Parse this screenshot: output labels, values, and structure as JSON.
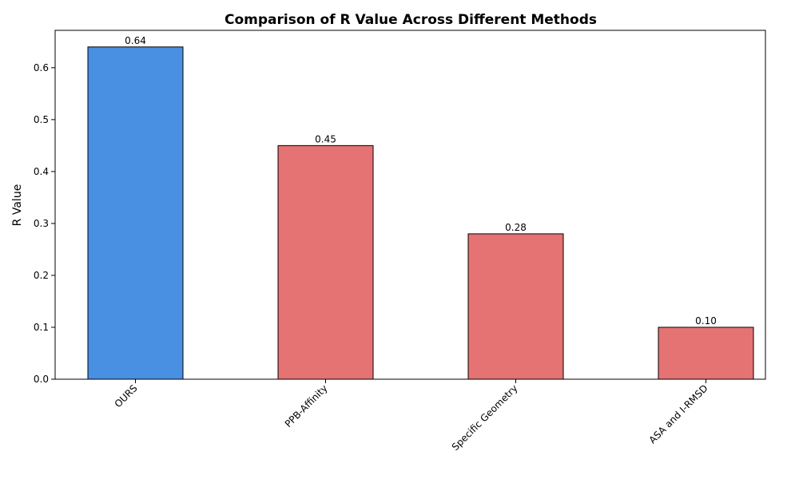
{
  "chart_data": {
    "type": "bar",
    "title": "Comparison of R Value Across Different Methods",
    "xlabel": "",
    "ylabel": "R Value",
    "categories": [
      "OURS",
      "PPB-Affinity",
      "Specific Geometry",
      "ASA and I-RMSD"
    ],
    "values": [
      0.64,
      0.45,
      0.28,
      0.1
    ],
    "value_labels": [
      "0.64",
      "0.45",
      "0.28",
      "0.10"
    ],
    "colors": [
      "#4a90e2",
      "#e57373",
      "#e57373",
      "#e57373"
    ],
    "edge_color": "#000000",
    "ylim": [
      0,
      0.672
    ],
    "yticks": [
      0.0,
      0.1,
      0.2,
      0.3,
      0.4,
      0.5,
      0.6
    ],
    "ytick_labels": [
      "0.0",
      "0.1",
      "0.2",
      "0.3",
      "0.4",
      "0.5",
      "0.6"
    ],
    "grid": false,
    "legend": "none"
  }
}
